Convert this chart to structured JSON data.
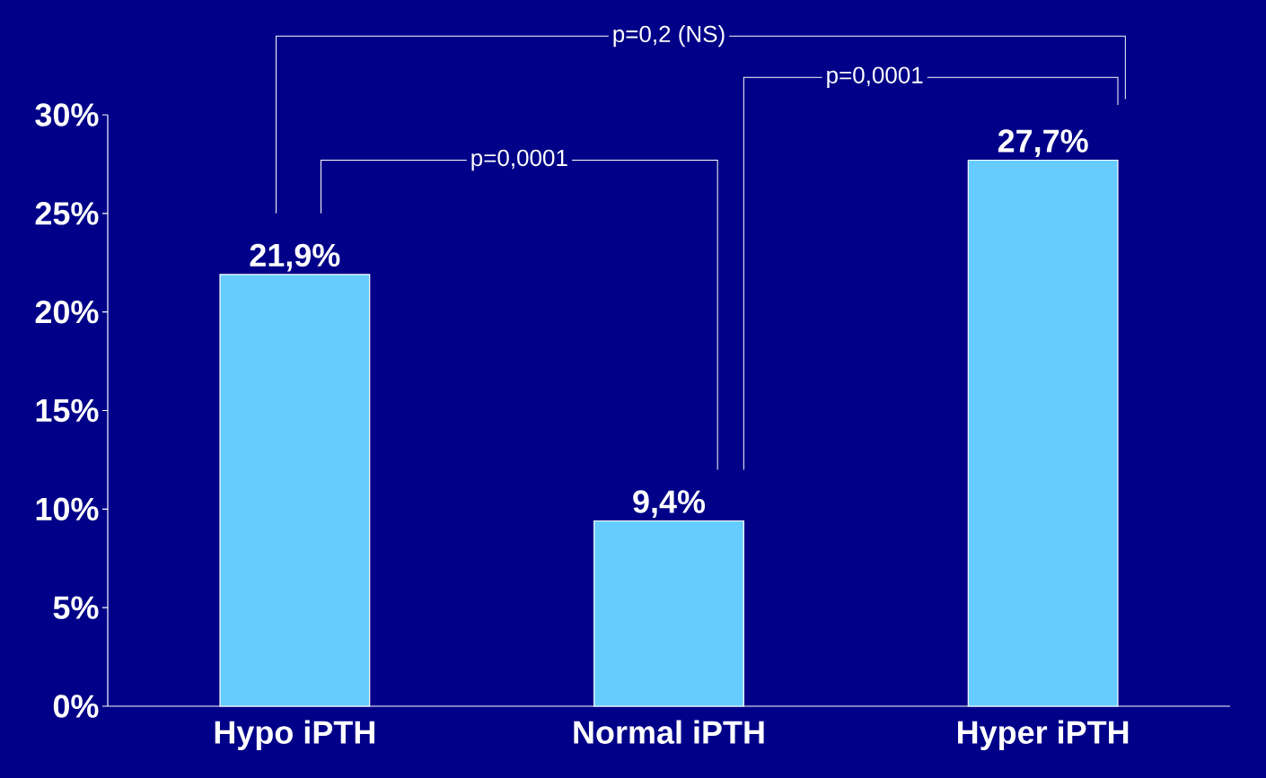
{
  "chart_data": {
    "type": "bar",
    "categories": [
      "Hypo iPTH",
      "Normal iPTH",
      "Hyper iPTH"
    ],
    "values": [
      21.9,
      9.4,
      27.7
    ],
    "value_labels": [
      "21,9%",
      "9,4%",
      "27,7%"
    ],
    "color": "#66ccff",
    "ylim": [
      0,
      30
    ],
    "yticks": [
      {
        "value": 0,
        "label": "0%"
      },
      {
        "value": 5,
        "label": "5%"
      },
      {
        "value": 10,
        "label": "10%"
      },
      {
        "value": 15,
        "label": "15%"
      },
      {
        "value": 20,
        "label": "20%"
      },
      {
        "value": 25,
        "label": "25%"
      },
      {
        "value": 30,
        "label": "30%"
      }
    ],
    "annotations": [
      "p=0,2 (NS)",
      "p=0,0001",
      "p=0,0001"
    ],
    "grid": false
  }
}
